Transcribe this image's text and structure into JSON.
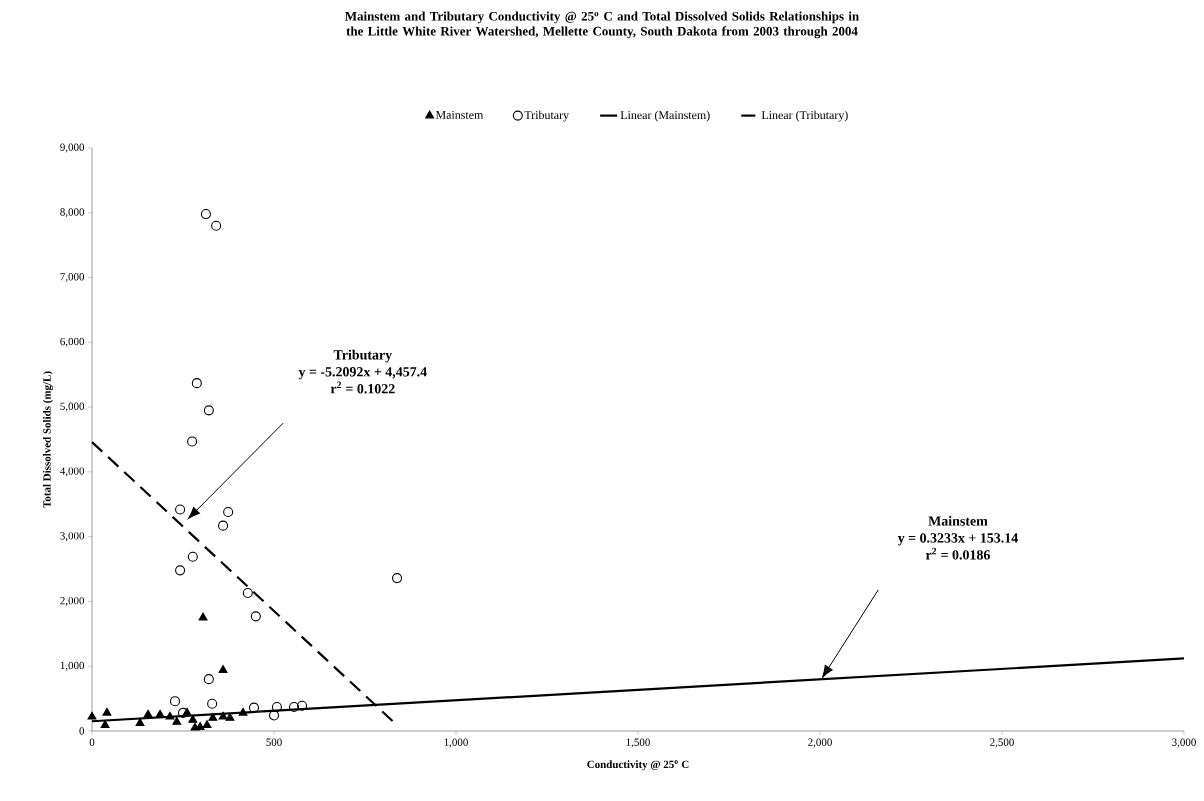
{
  "chart_data": {
    "type": "scatter",
    "title": "Mainstem and Tributary Conductivity @ 25$^{o}$ C and Total Dissolved Solids Relationships in the Little White River Watershed, Mellette County, South Dakota from 2003 through 2004",
    "xlabel": "Conductivity @ 25$^{o}$ C",
    "ylabel": "Total Dissolved Solids (mg/L)",
    "xlim": [
      0,
      3000
    ],
    "ylim": [
      0,
      9000
    ],
    "xticks": [
      0,
      500,
      {
        "value": 1000,
        "label": "1,000"
      },
      {
        "value": 1500,
        "label": "1,500"
      },
      {
        "value": 2000,
        "label": "2,000"
      },
      {
        "value": 2500,
        "label": "2,500"
      },
      {
        "value": 3000,
        "label": "3,000"
      }
    ],
    "yticks": [
      0,
      {
        "value": 1000,
        "label": "1,000"
      },
      {
        "value": 2000,
        "label": "2,000"
      },
      {
        "value": 3000,
        "label": "3,000"
      },
      {
        "value": 4000,
        "label": "4,000"
      },
      {
        "value": 5000,
        "label": "5,000"
      },
      {
        "value": 6000,
        "label": "6,000"
      },
      {
        "value": 7000,
        "label": "7,000"
      },
      {
        "value": 8000,
        "label": "8,000"
      },
      {
        "value": 9000,
        "label": "9,000"
      }
    ],
    "legend": "top",
    "series": [
      {
        "name": "Mainstem",
        "marker": "triangle",
        "color": "#000000",
        "x": [
          0,
          41,
          36,
          132,
          154,
          187,
          214,
          233,
          261,
          277,
          283,
          297,
          316,
          332,
          360,
          379,
          415,
          305,
          360
        ],
        "values": [
          220,
          280,
          90,
          120,
          250,
          250,
          220,
          140,
          280,
          170,
          50,
          60,
          90,
          200,
          220,
          200,
          280,
          1750,
          940
        ]
      },
      {
        "name": "Tributary",
        "marker": "circle",
        "color": "#000000",
        "x": [
          313,
          341,
          288,
          321,
          275,
          242,
          374,
          360,
          277,
          242,
          838,
          428,
          450,
          321,
          228,
          330,
          250,
          445,
          508,
          500,
          555,
          577
        ],
        "values": [
          7980,
          7800,
          5370,
          4950,
          4470,
          3420,
          3380,
          3170,
          2690,
          2480,
          2360,
          2130,
          1770,
          800,
          460,
          420,
          280,
          360,
          370,
          240,
          370,
          390
        ]
      },
      {
        "name": "Linear (Mainstem)",
        "type": "line",
        "line_style": "solid",
        "color": "#000000",
        "x": [
          0,
          3000
        ],
        "values": [
          150,
          1120
        ]
      },
      {
        "name": "Linear (Tributary)",
        "type": "line",
        "line_style": "dashed",
        "color": "#000000",
        "x": [
          0,
          836
        ],
        "values": [
          4460,
          100
        ]
      }
    ],
    "annotations": [
      "Tributary",
      "y = -5.2092x + 4,457.4",
      "r$^{2}$ = 0.1022",
      "Mainstem",
      "y = 0.3233x + 153.14",
      "r$^{2}$ = 0.0186"
    ]
  }
}
